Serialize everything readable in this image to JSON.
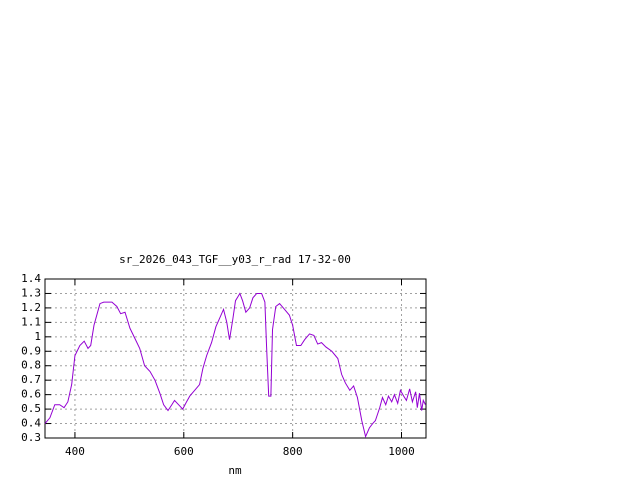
{
  "chart_data": {
    "type": "line",
    "title": "sr_2026_043_TGF__y03_r_rad 17-32-00",
    "x_label": "nm",
    "xlim": [
      345,
      1045
    ],
    "xticks": [
      400,
      600,
      800,
      1000
    ],
    "ylim": [
      0.3,
      1.4
    ],
    "yticks": [
      0.3,
      0.4,
      0.5,
      0.6,
      0.7,
      0.8,
      0.9,
      1,
      1.1,
      1.2,
      1.3,
      1.4
    ],
    "grid": true,
    "series": [
      {
        "color": "#9400d3",
        "x": [
          345,
          354,
          363,
          372,
          380,
          387,
          394,
          400,
          409,
          417,
          424,
          429,
          435,
          446,
          453,
          468,
          477,
          484,
          492,
          501,
          510,
          519,
          528,
          538,
          547,
          556,
          563,
          571,
          578,
          583,
          593,
          598,
          605,
          611,
          620,
          629,
          635,
          642,
          651,
          659,
          666,
          673,
          679,
          684,
          690,
          695,
          703,
          708,
          714,
          721,
          727,
          734,
          743,
          749,
          752,
          756,
          760,
          763,
          769,
          776,
          785,
          794,
          800,
          807,
          815,
          822,
          831,
          839,
          846,
          853,
          861,
          872,
          883,
          890,
          897,
          905,
          912,
          919,
          927,
          934,
          941,
          947,
          952,
          960,
          965,
          971,
          976,
          982,
          987,
          993,
          998,
          1004,
          1009,
          1015,
          1020,
          1026,
          1029,
          1033,
          1037,
          1040,
          1044
        ],
        "values": [
          0.4,
          0.44,
          0.53,
          0.53,
          0.51,
          0.55,
          0.67,
          0.87,
          0.94,
          0.97,
          0.92,
          0.94,
          1.08,
          1.23,
          1.24,
          1.24,
          1.21,
          1.16,
          1.17,
          1.06,
          0.99,
          0.92,
          0.8,
          0.76,
          0.7,
          0.61,
          0.53,
          0.49,
          0.53,
          0.56,
          0.52,
          0.5,
          0.55,
          0.59,
          0.63,
          0.67,
          0.78,
          0.87,
          0.96,
          1.07,
          1.13,
          1.19,
          1.1,
          0.98,
          1.12,
          1.25,
          1.3,
          1.25,
          1.17,
          1.2,
          1.27,
          1.3,
          1.3,
          1.24,
          0.94,
          0.59,
          0.59,
          1.05,
          1.21,
          1.23,
          1.19,
          1.15,
          1.08,
          0.94,
          0.94,
          0.98,
          1.02,
          1.01,
          0.95,
          0.96,
          0.93,
          0.9,
          0.85,
          0.74,
          0.68,
          0.63,
          0.66,
          0.58,
          0.42,
          0.31,
          0.37,
          0.4,
          0.42,
          0.51,
          0.58,
          0.53,
          0.59,
          0.55,
          0.6,
          0.54,
          0.63,
          0.59,
          0.56,
          0.64,
          0.55,
          0.62,
          0.51,
          0.61,
          0.49,
          0.56,
          0.53
        ]
      }
    ]
  }
}
